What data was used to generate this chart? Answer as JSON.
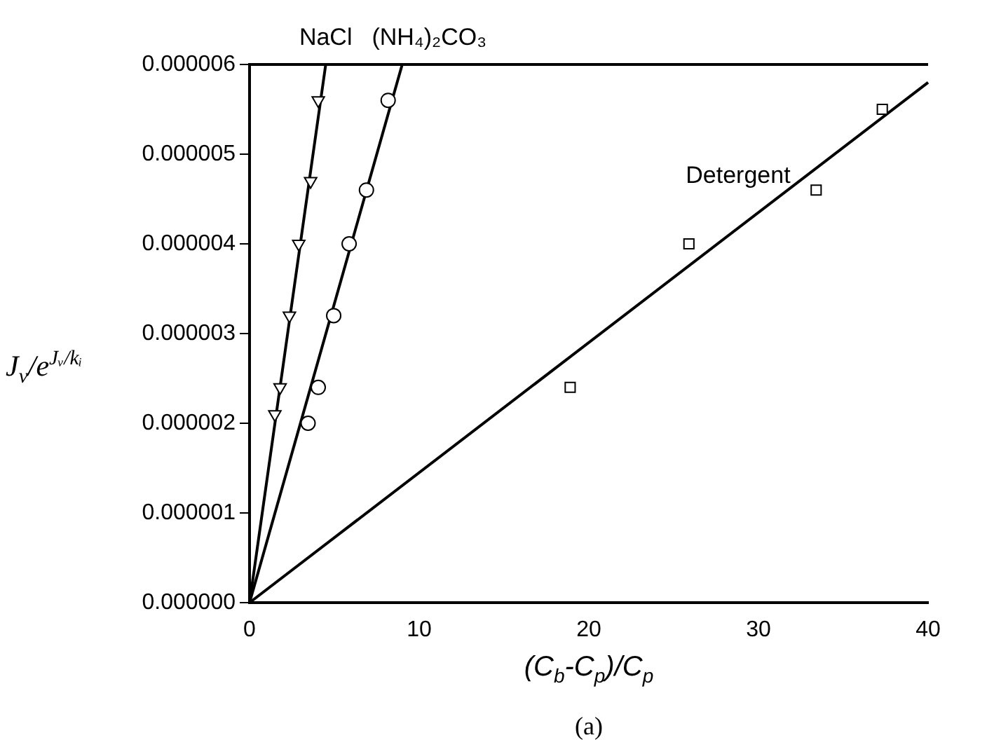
{
  "chart_data": {
    "type": "scatter",
    "xlabel": "(C$_{b}$-C$_{p}$)/C$_{p}$",
    "ylabel": "J$_{v}$/e$^{Jᵥ/kᵢ}$",
    "annotations": [
      "(a)"
    ],
    "xlim": [
      0,
      40
    ],
    "xticks": [
      0,
      10,
      20,
      30,
      40
    ],
    "ylim": [
      0,
      6e-06
    ],
    "yticks": [
      {
        "value": 0,
        "label": "0.000000"
      },
      {
        "value": 1e-06,
        "label": "0.000001"
      },
      {
        "value": 2e-06,
        "label": "0.000002"
      },
      {
        "value": 3e-06,
        "label": "0.000003"
      },
      {
        "value": 4e-06,
        "label": "0.000004"
      },
      {
        "value": 5e-06,
        "label": "0.000005"
      },
      {
        "value": 6e-06,
        "label": "0.000006"
      }
    ],
    "grid": false,
    "legend": false,
    "series": [
      {
        "type": "scatter",
        "marker": "triangle",
        "color": "#000000",
        "x": [
          1.49,
          1.8,
          2.35,
          2.9,
          3.6,
          4.05
        ],
        "values": [
          2.1e-06,
          2.4e-06,
          3.2e-06,
          4e-06,
          4.7e-06,
          5.6e-06
        ]
      },
      {
        "type": "scatter",
        "marker": "circle",
        "color": "#000000",
        "x": [
          3.45,
          4.05,
          4.96,
          5.87,
          6.89,
          8.17
        ],
        "values": [
          2e-06,
          2.4e-06,
          3.2e-06,
          4e-06,
          4.6e-06,
          5.6e-06
        ]
      },
      {
        "type": "scatter",
        "marker": "square",
        "color": "#000000",
        "x": [
          18.9,
          25.9,
          33.4,
          37.3
        ],
        "values": [
          2.4e-06,
          4e-06,
          4.6e-06,
          5.5e-06
        ]
      },
      {
        "type": "line",
        "name": "NaCl",
        "color": "#000000",
        "marker": "none",
        "x": [
          0,
          4.49
        ],
        "values": [
          0,
          6e-06
        ]
      },
      {
        "type": "line",
        "name": "(NH₄)₂CO₃",
        "color": "#000000",
        "marker": "none",
        "x": [
          0,
          9.0
        ],
        "values": [
          0,
          6e-06
        ]
      },
      {
        "type": "line",
        "name": "Detergent",
        "color": "#000000",
        "marker": "none",
        "x": [
          0,
          40
        ],
        "values": [
          0,
          5.8e-06
        ]
      }
    ]
  }
}
